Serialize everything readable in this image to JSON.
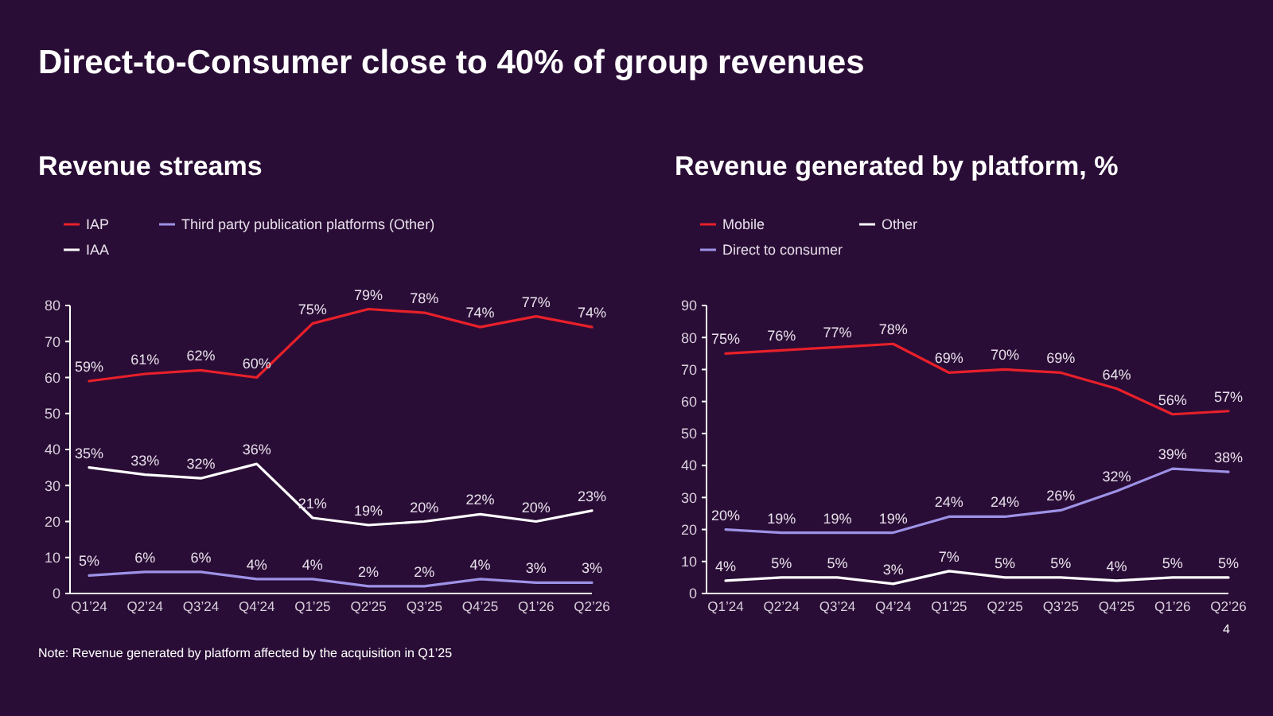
{
  "chart_data": [
    {
      "type": "line",
      "title": "Revenue streams",
      "annotations": [
        "Direct-to-Consumer close to 40% of group revenues",
        "Note: Revenue generated by platform affected by the acquisition in Q1’25",
        "4"
      ],
      "categories": [
        "Q1’24",
        "Q2’24",
        "Q3’24",
        "Q4’24",
        "Q1’25",
        "Q2’25",
        "Q3’25",
        "Q4’25",
        "Q1’26",
        "Q2’26"
      ],
      "series": [
        {
          "name": "IAP",
          "color": "#e8202a",
          "values": [
            59,
            61,
            62,
            60,
            75,
            79,
            78,
            74,
            77,
            74
          ],
          "value_labels": [
            "59%",
            "61%",
            "62%",
            "60%",
            "75%",
            "79%",
            "78%",
            "74%",
            "77%",
            "74%"
          ]
        },
        {
          "name": "Third party publication platforms (Other)",
          "color": "#9d92e6",
          "values": [
            5,
            6,
            6,
            4,
            4,
            2,
            2,
            4,
            3,
            3
          ],
          "value_labels": [
            "5%",
            "6%",
            "6%",
            "4%",
            "4%",
            "2%",
            "2%",
            "4%",
            "3%",
            "3%"
          ]
        },
        {
          "name": "IAA",
          "color": "#ffffff",
          "values": [
            35,
            33,
            32,
            36,
            21,
            19,
            20,
            22,
            20,
            23
          ],
          "value_labels": [
            "35%",
            "33%",
            "32%",
            "36%",
            "21%",
            "19%",
            "20%",
            "22%",
            "20%",
            "23%"
          ]
        }
      ],
      "ylim": [
        0,
        80
      ],
      "yticks": [
        0,
        10,
        20,
        30,
        40,
        50,
        60,
        70,
        80
      ],
      "grid": false,
      "legend": "top left",
      "marker": "none",
      "line_style": "solid"
    },
    {
      "type": "line",
      "title": "Revenue generated by platform, %",
      "categories": [
        "Q1’24",
        "Q2’24",
        "Q3’24",
        "Q4’24",
        "Q1’25",
        "Q2’25",
        "Q3’25",
        "Q4’25",
        "Q1’26",
        "Q2’26"
      ],
      "series": [
        {
          "name": "Mobile",
          "color": "#e8202a",
          "values": [
            75,
            76,
            77,
            78,
            69,
            70,
            69,
            64,
            56,
            57
          ],
          "value_labels": [
            "75%",
            "76%",
            "77%",
            "78%",
            "69%",
            "70%",
            "69%",
            "64%",
            "56%",
            "57%"
          ]
        },
        {
          "name": "Other",
          "color": "#ffffff",
          "values": [
            4,
            5,
            5,
            3,
            7,
            5,
            5,
            4,
            5,
            5
          ],
          "value_labels": [
            "4%",
            "5%",
            "5%",
            "3%",
            "7%",
            "5%",
            "5%",
            "4%",
            "5%",
            "5%"
          ]
        },
        {
          "name": "Direct to consumer",
          "color": "#9d92e6",
          "values": [
            20,
            19,
            19,
            19,
            24,
            24,
            26,
            32,
            39,
            38
          ],
          "value_labels": [
            "20%",
            "19%",
            "19%",
            "19%",
            "24%",
            "24%",
            "26%",
            "32%",
            "39%",
            "38%"
          ]
        }
      ],
      "ylim": [
        0,
        90
      ],
      "yticks": [
        0,
        10,
        20,
        30,
        40,
        50,
        60,
        70,
        80,
        90
      ],
      "grid": false,
      "legend": "top left",
      "marker": "none",
      "line_style": "solid"
    }
  ]
}
